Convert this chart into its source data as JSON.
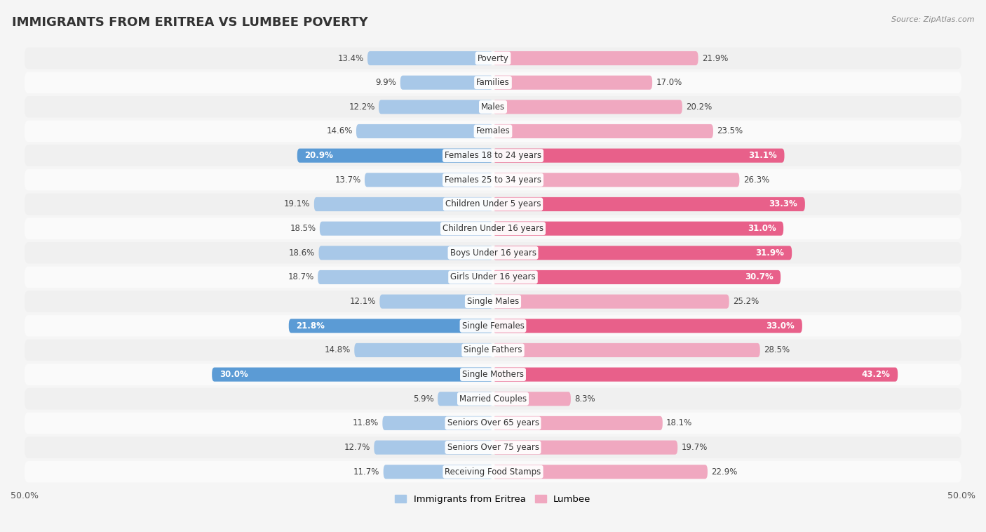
{
  "title": "IMMIGRANTS FROM ERITREA VS LUMBEE POVERTY",
  "source": "Source: ZipAtlas.com",
  "categories": [
    "Poverty",
    "Families",
    "Males",
    "Females",
    "Females 18 to 24 years",
    "Females 25 to 34 years",
    "Children Under 5 years",
    "Children Under 16 years",
    "Boys Under 16 years",
    "Girls Under 16 years",
    "Single Males",
    "Single Females",
    "Single Fathers",
    "Single Mothers",
    "Married Couples",
    "Seniors Over 65 years",
    "Seniors Over 75 years",
    "Receiving Food Stamps"
  ],
  "eritrea_values": [
    13.4,
    9.9,
    12.2,
    14.6,
    20.9,
    13.7,
    19.1,
    18.5,
    18.6,
    18.7,
    12.1,
    21.8,
    14.8,
    30.0,
    5.9,
    11.8,
    12.7,
    11.7
  ],
  "lumbee_values": [
    21.9,
    17.0,
    20.2,
    23.5,
    31.1,
    26.3,
    33.3,
    31.0,
    31.9,
    30.7,
    25.2,
    33.0,
    28.5,
    43.2,
    8.3,
    18.1,
    19.7,
    22.9
  ],
  "eritrea_color_light": "#a8c8e8",
  "eritrea_color_dark": "#5b9bd5",
  "lumbee_color_light": "#f0a8c0",
  "lumbee_color_dark": "#e8608a",
  "row_color_light": "#f0f0f0",
  "row_color_dark": "#fafafa",
  "background_color": "#f5f5f5",
  "axis_max": 50.0,
  "legend_eritrea": "Immigrants from Eritrea",
  "legend_lumbee": "Lumbee",
  "title_fontsize": 13,
  "label_fontsize": 8.5,
  "value_fontsize": 8.5,
  "figwidth": 14.06,
  "figheight": 7.58,
  "eritrea_threshold": 20.0,
  "lumbee_threshold": 30.0
}
